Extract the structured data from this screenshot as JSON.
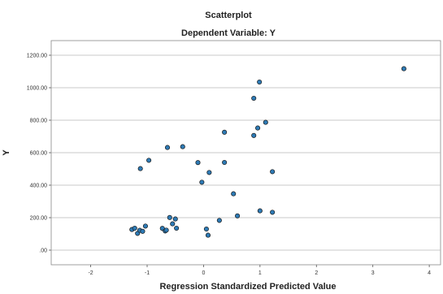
{
  "chart_data": {
    "type": "scatter",
    "title": "Scatterplot",
    "subtitle": "Dependent Variable: Y",
    "xlabel": "Regression Standardized Predicted Value",
    "ylabel": "Y",
    "xlim": [
      -2.7,
      4.2
    ],
    "ylim": [
      -90,
      1290
    ],
    "x_ticks": [
      -2,
      -1,
      0,
      1,
      2,
      3,
      4
    ],
    "x_tick_labels": [
      "-2",
      "-1",
      "0",
      "1",
      "2",
      "3",
      "4"
    ],
    "y_ticks": [
      0,
      200,
      400,
      600,
      800,
      1000,
      1200
    ],
    "y_tick_labels": [
      ".00",
      "200.00",
      "400.00",
      "600.00",
      "800.00",
      "1000.00",
      "1200.00"
    ],
    "grid": "horizontal",
    "marker_color": "#2e7bb6",
    "marker_edge": "#1a1a1a",
    "points": [
      {
        "x": -1.27,
        "y": 127
      },
      {
        "x": -1.22,
        "y": 135
      },
      {
        "x": -1.17,
        "y": 103
      },
      {
        "x": -1.13,
        "y": 122
      },
      {
        "x": -1.08,
        "y": 116
      },
      {
        "x": -1.03,
        "y": 148
      },
      {
        "x": -0.73,
        "y": 134
      },
      {
        "x": -0.68,
        "y": 118
      },
      {
        "x": -0.66,
        "y": 123
      },
      {
        "x": -0.6,
        "y": 201
      },
      {
        "x": -0.55,
        "y": 162
      },
      {
        "x": -0.5,
        "y": 192
      },
      {
        "x": -0.48,
        "y": 135
      },
      {
        "x": 0.05,
        "y": 130
      },
      {
        "x": 0.08,
        "y": 92
      },
      {
        "x": 0.28,
        "y": 183
      },
      {
        "x": 0.6,
        "y": 211
      },
      {
        "x": 1.0,
        "y": 242
      },
      {
        "x": 1.22,
        "y": 233
      },
      {
        "x": -1.12,
        "y": 502
      },
      {
        "x": -0.97,
        "y": 553
      },
      {
        "x": -0.64,
        "y": 632
      },
      {
        "x": -0.37,
        "y": 637
      },
      {
        "x": -0.1,
        "y": 539
      },
      {
        "x": -0.03,
        "y": 418
      },
      {
        "x": 0.1,
        "y": 478
      },
      {
        "x": 0.37,
        "y": 540
      },
      {
        "x": 0.53,
        "y": 347
      },
      {
        "x": 0.37,
        "y": 726
      },
      {
        "x": 0.89,
        "y": 706
      },
      {
        "x": 0.96,
        "y": 752
      },
      {
        "x": 1.1,
        "y": 787
      },
      {
        "x": 0.89,
        "y": 935
      },
      {
        "x": 0.99,
        "y": 1035
      },
      {
        "x": 1.22,
        "y": 483
      },
      {
        "x": 3.55,
        "y": 1117
      }
    ]
  }
}
